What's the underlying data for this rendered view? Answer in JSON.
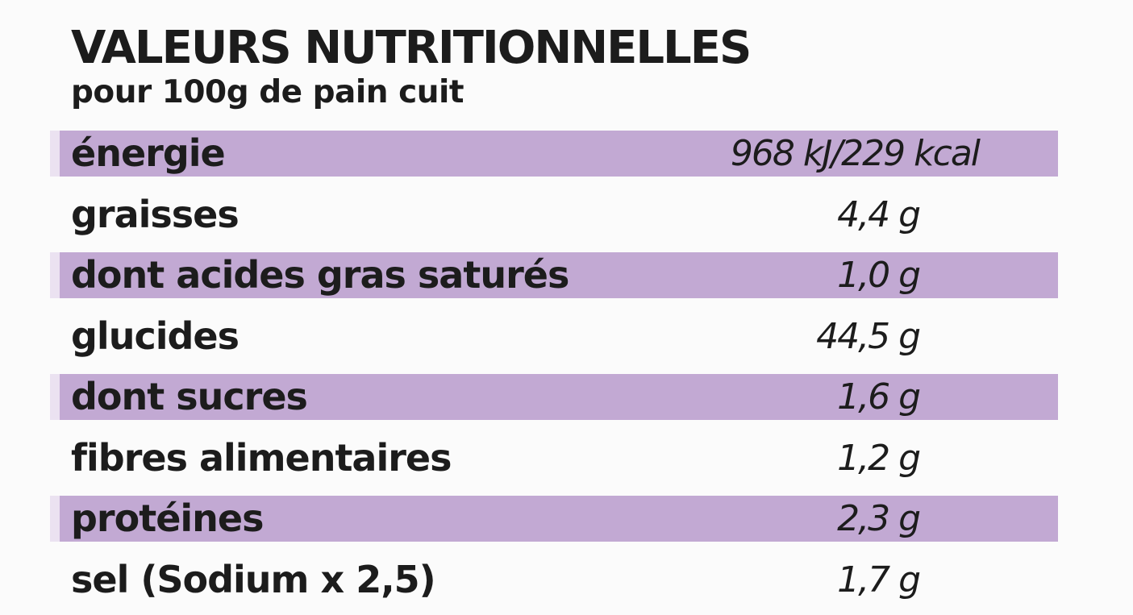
{
  "header": {
    "title": "VALEURS NUTRITIONNELLES",
    "subtitle": "pour 100g de pain cuit"
  },
  "nutrition_rows": [
    {
      "label": "énergie",
      "value": "968 kJ/229 kcal",
      "shaded": true
    },
    {
      "label": "graisses",
      "value": "4,4 g",
      "shaded": false
    },
    {
      "label": "dont acides gras saturés",
      "value": "1,0 g",
      "shaded": true
    },
    {
      "label": "glucides",
      "value": "44,5 g",
      "shaded": false
    },
    {
      "label": "dont sucres",
      "value": "1,6 g",
      "shaded": true
    },
    {
      "label": "fibres alimentaires",
      "value": "1,2 g",
      "shaded": false
    },
    {
      "label": "protéines",
      "value": "2,3 g",
      "shaded": true
    },
    {
      "label": "sel (Sodium x 2,5)",
      "value": "1,7 g",
      "shaded": false
    }
  ],
  "colors": {
    "band": "#c2a9d3",
    "band_edge": "#ebe2f1",
    "text": "#1c1c1c",
    "background": "#fbfbfb"
  }
}
